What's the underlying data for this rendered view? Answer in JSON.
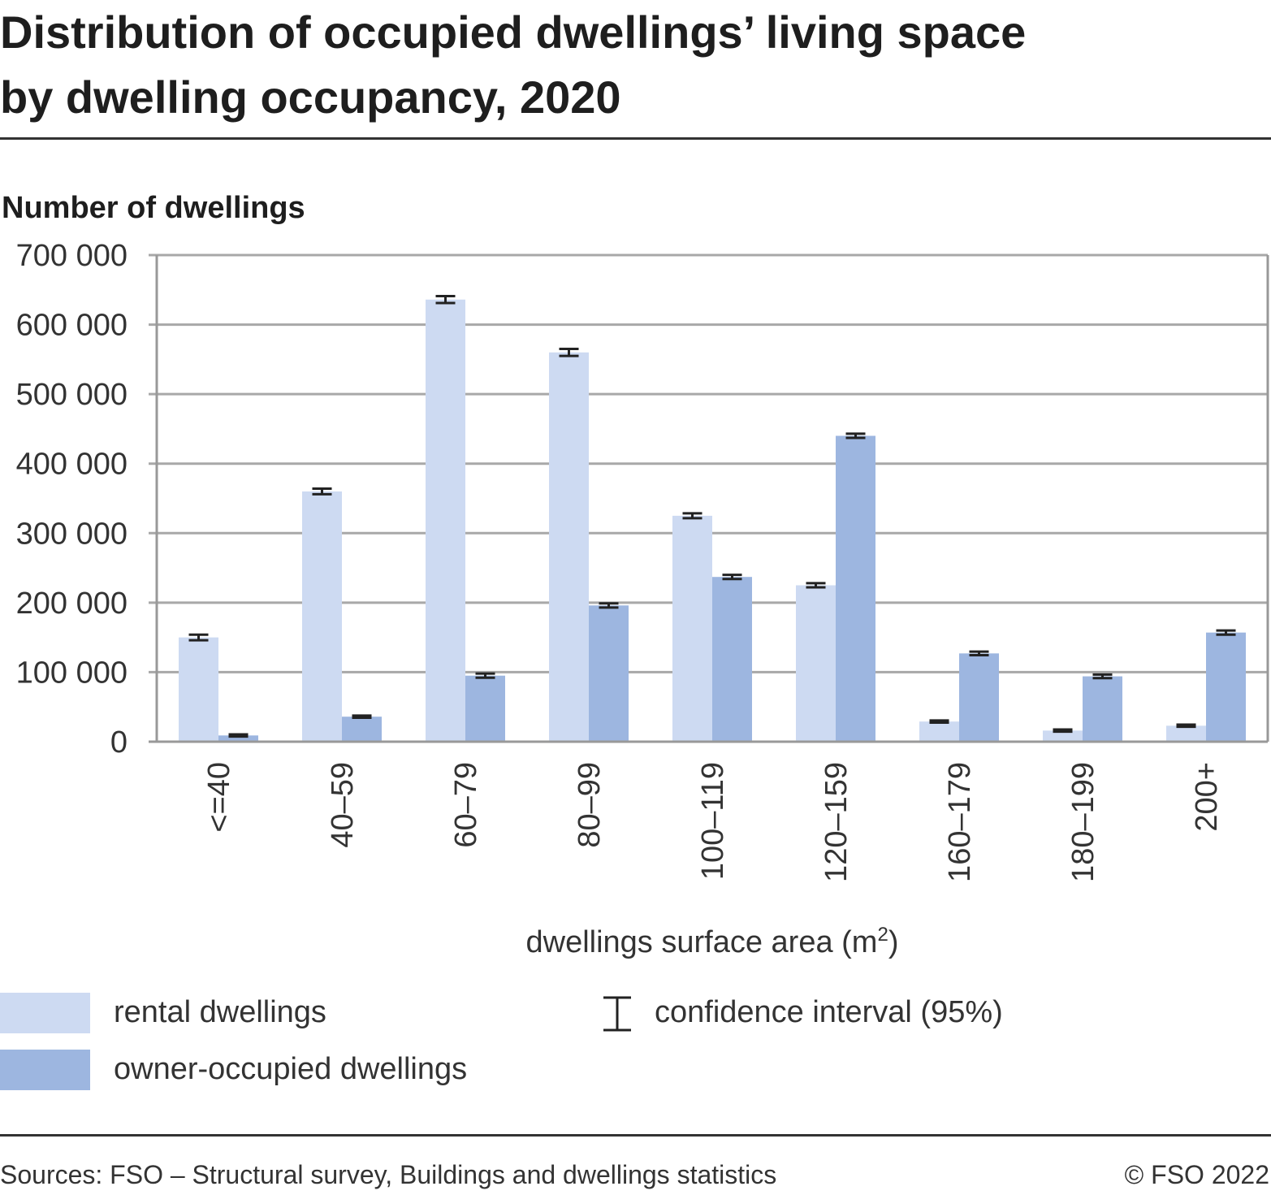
{
  "title_line1": "Distribution of occupied dwellings’ living space",
  "title_line2": "by dwelling occupancy, 2020",
  "source": "Sources: FSO – Structural survey, Buildings and dwellings statistics",
  "copyright": "© FSO 2022",
  "colors": {
    "rental": "#cddaf2",
    "owner": "#9db6e0",
    "grid": "#a8a8a8",
    "axis": "#999999",
    "error": "#222222"
  },
  "legend": {
    "rental": "rental dwellings",
    "owner": "owner-occupied dwellings",
    "ci_icon": "confidence-interval-icon",
    "ci": "confidence interval (95%)"
  },
  "chart_data": {
    "type": "bar",
    "title": "Distribution of occupied dwellings’ living space by dwelling occupancy, 2020",
    "ylabel": "Number of dwellings",
    "xlabel": "dwellings surface area (m",
    "xlabel_sup": "2",
    "xlabel_end": ")",
    "ylim": [
      0,
      700000
    ],
    "yticks": [
      0,
      100000,
      200000,
      300000,
      400000,
      500000,
      600000,
      700000
    ],
    "ytick_labels": [
      "0",
      "100 000",
      "200 000",
      "300 000",
      "400 000",
      "500 000",
      "600 000",
      "700 000"
    ],
    "grid": true,
    "categories": [
      "<=40",
      "40–59",
      "60–79",
      "80–99",
      "100–119",
      "120–159",
      "160–179",
      "180–199",
      "200+"
    ],
    "series": [
      {
        "name": "rental dwellings",
        "values": [
          150000,
          360000,
          636000,
          560000,
          325000,
          225000,
          29000,
          16000,
          23000
        ],
        "ci": [
          4000,
          4000,
          5000,
          5000,
          3500,
          3000,
          1500,
          1500,
          1500
        ]
      },
      {
        "name": "owner-occupied dwellings",
        "values": [
          9000,
          36000,
          95000,
          196000,
          237000,
          440000,
          127000,
          94000,
          157000
        ],
        "ci": [
          1500,
          1500,
          3000,
          3000,
          3000,
          3000,
          2500,
          2500,
          3000
        ]
      }
    ]
  }
}
